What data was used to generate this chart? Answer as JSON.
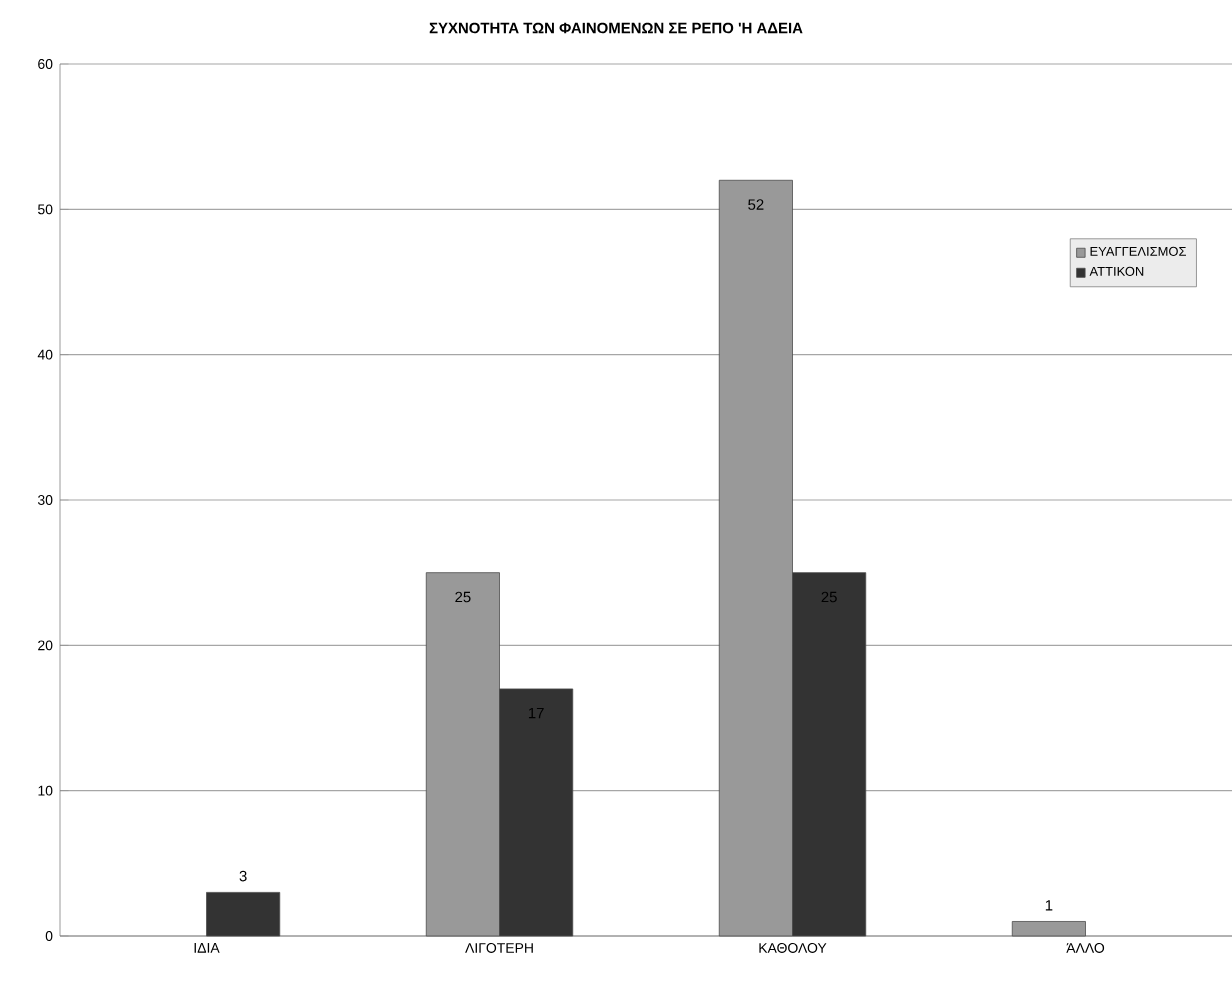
{
  "chart_data": {
    "type": "bar",
    "title": "ΣΥΧΝΟΤΗΤΑ ΤΩΝ ΦΑΙΝΟΜΕΝΩΝ ΣΕ ΡΕΠΟ 'Η ΑΔΕΙΑ",
    "categories": [
      "ΙΔΙΑ",
      "ΛΙΓΟΤΕΡΗ",
      "ΚΑΘΟΛΟΥ",
      "ΆΛΛΟ"
    ],
    "series": [
      {
        "name": "ΕΥΑΓΓΕΛΙΣΜΟΣ",
        "color": "#999999",
        "values": [
          null,
          25,
          52,
          1
        ],
        "value_labels": [
          null,
          "25",
          "52",
          "1"
        ]
      },
      {
        "name": "ΑΤΤΙΚΟΝ",
        "color": "#333333",
        "values": [
          3,
          17,
          25,
          null
        ],
        "value_labels": [
          "3",
          "17",
          "25",
          null
        ]
      }
    ],
    "ylim": [
      0,
      60
    ],
    "yticks": [
      0,
      10,
      20,
      30,
      40,
      50,
      60
    ],
    "grid": "y",
    "legend": "top right"
  }
}
